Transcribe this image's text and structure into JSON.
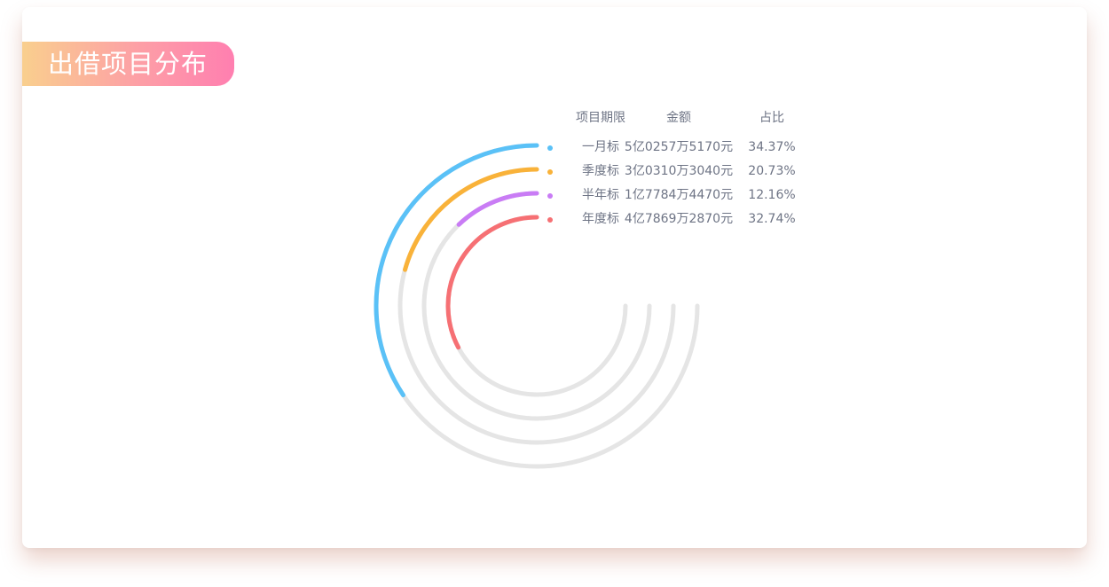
{
  "title": "出借项目分布",
  "table_headers": {
    "term": "项目期限",
    "amount": "金额",
    "share": "占比"
  },
  "chart_data": {
    "type": "radial-bar",
    "title": "出借项目分布",
    "track_color": "#e5e5e5",
    "series": [
      {
        "name": "一月标",
        "amount": "5亿0257万5170元",
        "percent_label": "34.37%",
        "value": 34.37,
        "color": "#5ac1f7"
      },
      {
        "name": "季度标",
        "amount": "3亿0310万3040元",
        "percent_label": "20.73%",
        "value": 20.73,
        "color": "#f9b239"
      },
      {
        "name": "半年标",
        "amount": "1亿7784万4470元",
        "percent_label": "12.16%",
        "value": 12.16,
        "color": "#c97cf5"
      },
      {
        "name": "年度标",
        "amount": "4亿7869万2870元",
        "percent_label": "32.74%",
        "value": 32.74,
        "color": "#f67074"
      }
    ]
  }
}
